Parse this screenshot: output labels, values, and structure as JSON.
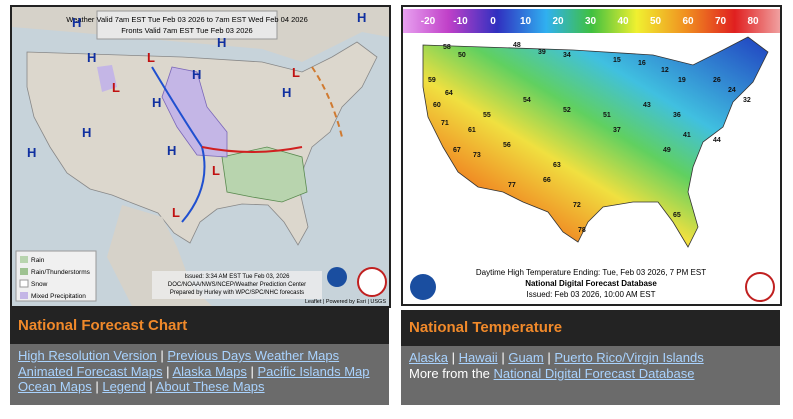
{
  "left": {
    "map": {
      "valid_line": "Weather Valid 7am EST Tue Feb 03 2026 to 7am EST Wed Feb 04 2026",
      "fronts_line": "Fronts Valid 7am EST Tue Feb 03 2026",
      "highs": [
        "H",
        "H",
        "H",
        "H",
        "H",
        "H",
        "H",
        "H",
        "H",
        "H"
      ],
      "lows": [
        "L",
        "L",
        "L",
        "L",
        "L"
      ],
      "legend": [
        "Rain",
        "Rain/Thunderstorms",
        "Snow",
        "Mixed Precipitation"
      ],
      "issued": [
        "Issued: 3:34 AM EST Tue Feb 03, 2026",
        "DOC/NOAA/NWS/NCEP/Weather Prediction Center",
        "Prepared by Hurley with WPC/SPC/NHC forecasts"
      ],
      "attribution": "Leaflet | Powered by Esri | USGS"
    },
    "title": "National Forecast Chart",
    "links": [
      "High Resolution Version",
      "Previous Days Weather Maps",
      "Animated Forecast Maps",
      "Alaska Maps",
      "Pacific Islands Map",
      "Ocean Maps",
      "Legend",
      "About These Maps"
    ],
    "separator": "|"
  },
  "right": {
    "map": {
      "scale_labels": [
        "-20",
        "-10",
        "0",
        "10",
        "20",
        "30",
        "40",
        "50",
        "60",
        "70",
        "80"
      ],
      "temperatures": [
        "58",
        "50",
        "48",
        "39",
        "34",
        "15",
        "16",
        "12",
        "19",
        "26",
        "24",
        "32",
        "60",
        "64",
        "71",
        "55",
        "54",
        "52",
        "51",
        "43",
        "37",
        "36",
        "44",
        "49",
        "63",
        "67",
        "73",
        "77",
        "66",
        "72",
        "78",
        "65",
        "56",
        "61",
        "59",
        "41"
      ],
      "caption": [
        "Daytime High Temperature Ending: Tue, Feb 03 2026, 7 PM EST",
        "National Digital Forecast Database",
        "Issued: Feb 03 2026, 10:00 AM EST"
      ]
    },
    "title": "National Temperature",
    "links": [
      "Alaska",
      "Hawaii",
      "Guam",
      "Puerto Rico/Virgin Islands"
    ],
    "separator": "|",
    "more_text": "More from the",
    "more_link": "National Digital Forecast Database"
  }
}
